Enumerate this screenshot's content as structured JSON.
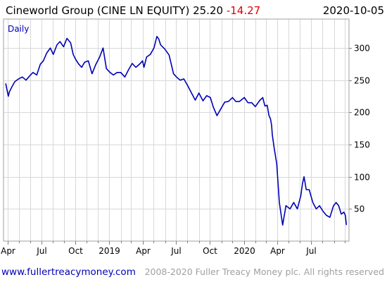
{
  "header": {
    "name": "Cineworld Group (CINE LN EQUITY)",
    "price": "25.20",
    "change": "-14.27",
    "date": "2020-10-05"
  },
  "footer": {
    "site": "www.fullertreacymoney.com",
    "copyright": "2008-2020 Fuller Treacy Money plc. All rights reserved"
  },
  "colors": {
    "line": "#0000b4",
    "change": "#e00000",
    "link": "#0000b4",
    "period": "#0000b4"
  },
  "chart_data": {
    "type": "line",
    "period_label": "Daily",
    "title": "Cineworld Group (CINE LN EQUITY) 25.20 -14.27",
    "ylim": [
      0,
      345
    ],
    "xlim": [
      "2018-03-20",
      "2020-10-12"
    ],
    "y_ticks": [
      50,
      100,
      150,
      200,
      250,
      300
    ],
    "x_ticks": [
      {
        "date": "2018-04-01",
        "label": "Apr"
      },
      {
        "date": "2018-07-01",
        "label": "Jul"
      },
      {
        "date": "2018-10-01",
        "label": "Oct"
      },
      {
        "date": "2019-01-01",
        "label": "2019"
      },
      {
        "date": "2019-04-01",
        "label": "Apr"
      },
      {
        "date": "2019-07-01",
        "label": "Jul"
      },
      {
        "date": "2019-10-01",
        "label": "Oct"
      },
      {
        "date": "2020-01-01",
        "label": "2020"
      },
      {
        "date": "2020-04-01",
        "label": "Apr"
      },
      {
        "date": "2020-07-01",
        "label": "Jul"
      }
    ],
    "series": [
      {
        "color": "#0000b4",
        "x": [
          "2018-03-26",
          "2018-04-02",
          "2018-04-05",
          "2018-04-12",
          "2018-04-20",
          "2018-04-30",
          "2018-05-10",
          "2018-05-20",
          "2018-06-01",
          "2018-06-08",
          "2018-06-18",
          "2018-06-28",
          "2018-07-06",
          "2018-07-15",
          "2018-07-25",
          "2018-08-02",
          "2018-08-12",
          "2018-08-20",
          "2018-08-30",
          "2018-09-08",
          "2018-09-18",
          "2018-09-25",
          "2018-10-02",
          "2018-10-10",
          "2018-10-18",
          "2018-10-26",
          "2018-11-05",
          "2018-11-15",
          "2018-11-25",
          "2018-12-05",
          "2018-12-15",
          "2018-12-24",
          "2019-01-03",
          "2019-01-12",
          "2019-01-22",
          "2019-02-01",
          "2019-02-12",
          "2019-02-22",
          "2019-03-04",
          "2019-03-14",
          "2019-03-24",
          "2019-04-01",
          "2019-04-05",
          "2019-04-12",
          "2019-04-22",
          "2019-05-02",
          "2019-05-10",
          "2019-05-15",
          "2019-05-20",
          "2019-06-01",
          "2019-06-12",
          "2019-06-24",
          "2019-07-02",
          "2019-07-12",
          "2019-07-22",
          "2019-08-01",
          "2019-08-12",
          "2019-08-22",
          "2019-09-01",
          "2019-09-12",
          "2019-09-22",
          "2019-10-02",
          "2019-10-10",
          "2019-10-20",
          "2019-10-30",
          "2019-11-10",
          "2019-11-20",
          "2019-12-01",
          "2019-12-10",
          "2019-12-20",
          "2020-01-02",
          "2020-01-12",
          "2020-01-22",
          "2020-02-01",
          "2020-02-12",
          "2020-02-21",
          "2020-02-27",
          "2020-03-04",
          "2020-03-09",
          "2020-03-13",
          "2020-03-16",
          "2020-03-18",
          "2020-03-23",
          "2020-03-30",
          "2020-04-06",
          "2020-04-15",
          "2020-04-24",
          "2020-05-05",
          "2020-05-15",
          "2020-05-25",
          "2020-06-03",
          "2020-06-08",
          "2020-06-12",
          "2020-06-18",
          "2020-06-26",
          "2020-07-06",
          "2020-07-15",
          "2020-07-24",
          "2020-08-03",
          "2020-08-12",
          "2020-08-21",
          "2020-08-31",
          "2020-09-07",
          "2020-09-14",
          "2020-09-21",
          "2020-09-28",
          "2020-10-02",
          "2020-10-05"
        ],
        "y": [
          245,
          225,
          232,
          240,
          248,
          252,
          255,
          250,
          258,
          262,
          258,
          275,
          280,
          292,
          300,
          290,
          305,
          310,
          302,
          315,
          308,
          290,
          282,
          275,
          270,
          278,
          280,
          260,
          274,
          285,
          300,
          268,
          262,
          258,
          262,
          262,
          255,
          266,
          276,
          270,
          275,
          280,
          270,
          286,
          290,
          300,
          318,
          314,
          305,
          298,
          289,
          260,
          255,
          250,
          252,
          242,
          230,
          219,
          230,
          218,
          226,
          223,
          208,
          195,
          205,
          216,
          217,
          223,
          217,
          217,
          223,
          215,
          215,
          209,
          218,
          223,
          210,
          211,
          195,
          190,
          180,
          165,
          145,
          120,
          60,
          25,
          55,
          50,
          60,
          50,
          70,
          90,
          100,
          80,
          80,
          60,
          50,
          55,
          46,
          40,
          37,
          55,
          60,
          55,
          42,
          45,
          40,
          25
        ]
      }
    ]
  }
}
